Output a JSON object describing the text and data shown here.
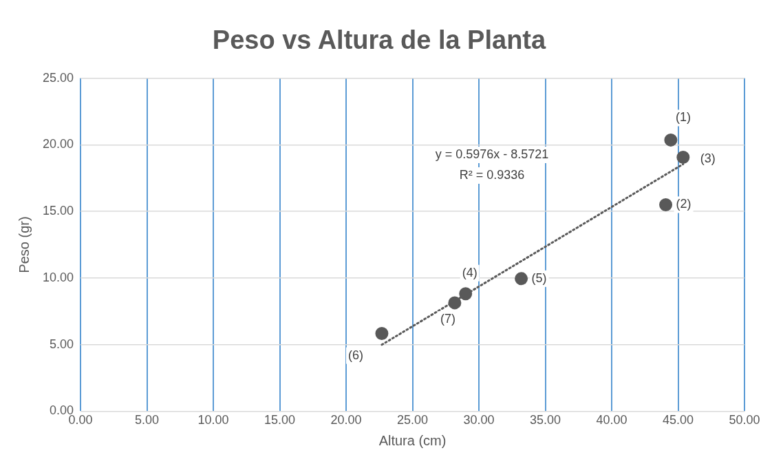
{
  "chart_data": {
    "type": "scatter",
    "title": "Peso vs Altura de la Planta",
    "xlabel": "Altura (cm)",
    "ylabel": "Peso (gr)",
    "xlim": [
      0,
      50
    ],
    "ylim": [
      0,
      25
    ],
    "xticks": [
      {
        "value": 0,
        "label": "0.00"
      },
      {
        "value": 5,
        "label": "5.00"
      },
      {
        "value": 10,
        "label": "10.00"
      },
      {
        "value": 15,
        "label": "15.00"
      },
      {
        "value": 20,
        "label": "20.00"
      },
      {
        "value": 25,
        "label": "25.00"
      },
      {
        "value": 30,
        "label": "30.00"
      },
      {
        "value": 35,
        "label": "35.00"
      },
      {
        "value": 40,
        "label": "40.00"
      },
      {
        "value": 45,
        "label": "45.00"
      },
      {
        "value": 50,
        "label": "50.00"
      }
    ],
    "yticks": [
      {
        "value": 0,
        "label": "0.00"
      },
      {
        "value": 5,
        "label": "5.00"
      },
      {
        "value": 10,
        "label": "10.00"
      },
      {
        "value": 15,
        "label": "15.00"
      },
      {
        "value": 20,
        "label": "20.00"
      },
      {
        "value": 25,
        "label": "25.00"
      }
    ],
    "grid": true,
    "legend": false,
    "marker": "circle",
    "series": [
      {
        "type": "scatter",
        "color": "#595959",
        "x": [
          44.45,
          44.07,
          45.38,
          29.0,
          33.19,
          22.69,
          28.18
        ],
        "values": [
          20.36,
          15.5,
          19.06,
          8.82,
          9.95,
          5.83,
          8.14
        ]
      },
      {
        "type": "line",
        "color": "#595959",
        "line_style": "dotted",
        "marker": "none",
        "x": [
          22.69,
          45.38
        ],
        "values": [
          4.99,
          18.55
        ]
      }
    ],
    "annotations": [
      {
        "text": "(1)",
        "x": 44.45,
        "y": 20.36
      },
      {
        "text": "(2)",
        "x": 44.07,
        "y": 15.5
      },
      {
        "text": "(3)",
        "x": 45.38,
        "y": 19.06
      },
      {
        "text": "(4)",
        "x": 29.0,
        "y": 8.82
      },
      {
        "text": "(5)",
        "x": 33.19,
        "y": 9.95
      },
      {
        "text": "(6)",
        "x": 22.69,
        "y": 5.83
      },
      {
        "text": "(7)",
        "x": 28.18,
        "y": 8.14
      },
      "y = 0.5976x - 8.5721",
      "R² = 0.9336"
    ]
  }
}
